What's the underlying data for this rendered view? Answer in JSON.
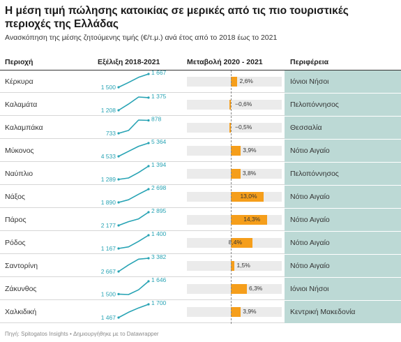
{
  "title": "Η μέση τιμή πώλησης κατοικίας σε μερικές από τις πιο τουριστικές περιοχές της Ελλάδας",
  "subtitle": "Ανασκόπηση της μέσης ζητούμενης τιμής (€/τ.μ.) ανά έτος από το 2018 έως το 2021",
  "columns": {
    "area": "Περιοχή",
    "trend": "Εξέλιξη 2018-2021",
    "change": "Μεταβολή 2020 - 2021",
    "region": "Περιφέρεια"
  },
  "footer": "Πηγή: Spitogatos Insights • Δημιουργήθηκε με το Datawrapper",
  "colors": {
    "spark_line": "#27a3b4",
    "bar": "#f59e1b",
    "bar_track": "#ebebeb",
    "region_bg": "#bcd9d5"
  },
  "chart_data": {
    "type": "table",
    "years": [
      2018,
      2019,
      2020,
      2021
    ],
    "change_axis": [
      -1,
      20
    ],
    "rows": [
      {
        "area": "Κέρκυρα",
        "region": "Ιόνιοι Νήσοι",
        "prices": [
          1500,
          1560,
          1625,
          1667
        ],
        "start_label": "1 500",
        "end_label": "1 667",
        "change": 2.6,
        "change_label": "2,6%"
      },
      {
        "area": "Καλαμάτα",
        "region": "Πελοπόννησος",
        "prices": [
          1208,
          1290,
          1383,
          1375
        ],
        "start_label": "1 208",
        "end_label": "1 375",
        "change": -0.6,
        "change_label": "−0,6%"
      },
      {
        "area": "Καλαμπάκα",
        "region": "Θεσσαλία",
        "prices": [
          733,
          765,
          882,
          878
        ],
        "start_label": "733",
        "end_label": "878",
        "change": -0.5,
        "change_label": "−0,5%"
      },
      {
        "area": "Μύκονος",
        "region": "Νότιο Αιγαίο",
        "prices": [
          4533,
          4850,
          5163,
          5364
        ],
        "start_label": "4 533",
        "end_label": "5 364",
        "change": 3.9,
        "change_label": "3,9%"
      },
      {
        "area": "Ναύπλιο",
        "region": "Πελοπόννησος",
        "prices": [
          1289,
          1300,
          1343,
          1394
        ],
        "start_label": "1 289",
        "end_label": "1 394",
        "change": 3.8,
        "change_label": "3,8%"
      },
      {
        "area": "Νάξος",
        "region": "Νότιο Αιγαίο",
        "prices": [
          1890,
          2050,
          2387,
          2698
        ],
        "start_label": "1 890",
        "end_label": "2 698",
        "change": 13.0,
        "change_label": "13,0%"
      },
      {
        "area": "Πάρος",
        "region": "Νότιο Αιγαίο",
        "prices": [
          2177,
          2380,
          2532,
          2895
        ],
        "start_label": "2 177",
        "end_label": "2 895",
        "change": 14.3,
        "change_label": "14,3%"
      },
      {
        "area": "Ρόδος",
        "region": "Νότιο Αιγαίο",
        "prices": [
          1167,
          1195,
          1292,
          1400
        ],
        "start_label": "1 167",
        "end_label": "1 400",
        "change": 8.4,
        "change_label": "8,4%"
      },
      {
        "area": "Σαντορίνη",
        "region": "Νότιο Αιγαίο",
        "prices": [
          2667,
          3020,
          3332,
          3382
        ],
        "start_label": "2 667",
        "end_label": "3 382",
        "change": 1.5,
        "change_label": "1,5%"
      },
      {
        "area": "Ζάκυνθος",
        "region": "Ιόνιοι Νήσοι",
        "prices": [
          1500,
          1495,
          1549,
          1646
        ],
        "start_label": "1 500",
        "end_label": "1 646",
        "change": 6.3,
        "change_label": "6,3%"
      },
      {
        "area": "Χαλκιδική",
        "region": "Κεντρική Μακεδονία",
        "prices": [
          1467,
          1560,
          1636,
          1700
        ],
        "start_label": "1 467",
        "end_label": "1 700",
        "change": 3.9,
        "change_label": "3,9%"
      }
    ]
  }
}
